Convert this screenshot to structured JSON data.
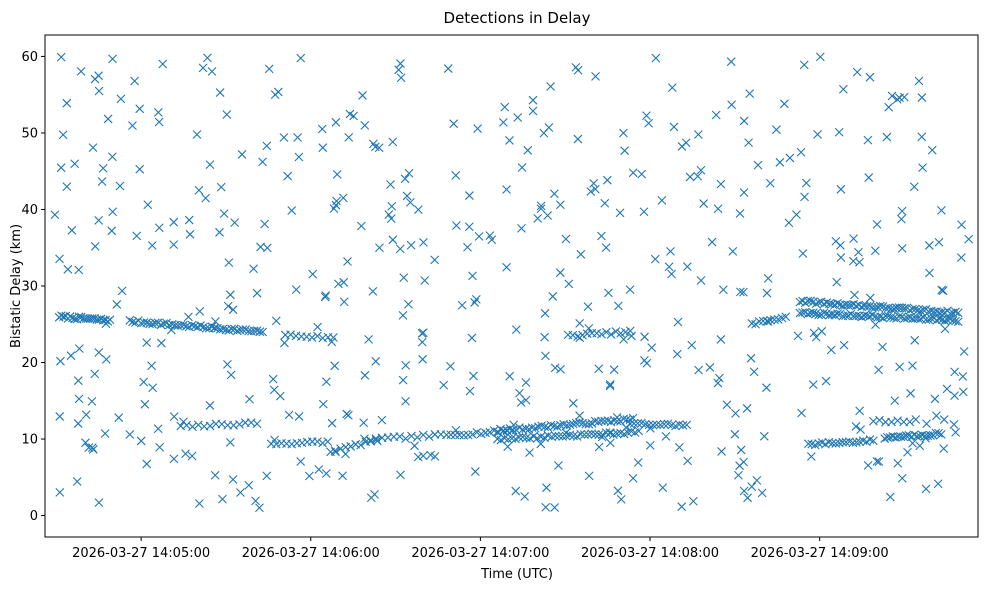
{
  "chart_data": {
    "type": "scatter",
    "title": "Detections in Delay",
    "xlabel": "Time (UTC)",
    "ylabel": "Bistatic Delay (km)",
    "x_unit": "seconds after 2026-03-27 14:04:31",
    "xlim": [
      -5,
      325
    ],
    "ylim": [
      -2.8,
      62.8
    ],
    "x_ticks": [
      {
        "value": 29,
        "label": "2026-03-27 14:05:00"
      },
      {
        "value": 89,
        "label": "2026-03-27 14:06:00"
      },
      {
        "value": 149,
        "label": "2026-03-27 14:07:00"
      },
      {
        "value": 209,
        "label": "2026-03-27 14:08:00"
      },
      {
        "value": 269,
        "label": "2026-03-27 14:09:00"
      }
    ],
    "y_ticks": [
      0,
      10,
      20,
      30,
      40,
      50,
      60
    ],
    "marker": "x",
    "color": "#1f77b4",
    "series": [
      {
        "name": "detections",
        "tracks": [
          {
            "t_start": 0,
            "t_end": 18,
            "y_start": 26.0,
            "y_end": 25.5,
            "n": 24
          },
          {
            "t_start": 25,
            "t_end": 72,
            "y_start": 25.4,
            "y_end": 24.0,
            "n": 48
          },
          {
            "t_start": 43,
            "t_end": 70,
            "y_start": 11.6,
            "y_end": 12.1,
            "n": 14
          },
          {
            "t_start": 80,
            "t_end": 97,
            "y_start": 23.6,
            "y_end": 23.2,
            "n": 10
          },
          {
            "t_start": 75,
            "t_end": 95,
            "y_start": 9.4,
            "y_end": 9.6,
            "n": 12
          },
          {
            "t_start": 96,
            "t_end": 112,
            "y_start": 8.3,
            "y_end": 9.9,
            "n": 10
          },
          {
            "t_start": 108,
            "t_end": 135,
            "y_start": 9.9,
            "y_end": 10.5,
            "n": 14
          },
          {
            "t_start": 137,
            "t_end": 160,
            "y_start": 10.5,
            "y_end": 11.1,
            "n": 16
          },
          {
            "t_start": 155,
            "t_end": 205,
            "y_start": 10.0,
            "y_end": 10.9,
            "n": 40
          },
          {
            "t_start": 155,
            "t_end": 203,
            "y_start": 11.1,
            "y_end": 12.6,
            "n": 44
          },
          {
            "t_start": 180,
            "t_end": 202,
            "y_start": 23.5,
            "y_end": 24.0,
            "n": 14
          },
          {
            "t_start": 202,
            "t_end": 222,
            "y_start": 12.0,
            "y_end": 11.8,
            "n": 16
          },
          {
            "t_start": 245,
            "t_end": 257,
            "y_start": 25.0,
            "y_end": 26.0,
            "n": 10
          },
          {
            "t_start": 262,
            "t_end": 318,
            "y_start": 28.0,
            "y_end": 26.5,
            "n": 60
          },
          {
            "t_start": 262,
            "t_end": 318,
            "y_start": 26.5,
            "y_end": 25.5,
            "n": 60
          },
          {
            "t_start": 265,
            "t_end": 288,
            "y_start": 9.3,
            "y_end": 9.8,
            "n": 20
          },
          {
            "t_start": 292,
            "t_end": 312,
            "y_start": 10.2,
            "y_end": 10.7,
            "n": 22
          },
          {
            "t_start": 288,
            "t_end": 303,
            "y_start": 12.3,
            "y_end": 12.4,
            "n": 8
          }
        ],
        "random_clutter": {
          "count": 520,
          "t_range": [
            -2,
            322
          ],
          "y_range": [
            1,
            60
          ],
          "seed": 7
        }
      }
    ]
  }
}
